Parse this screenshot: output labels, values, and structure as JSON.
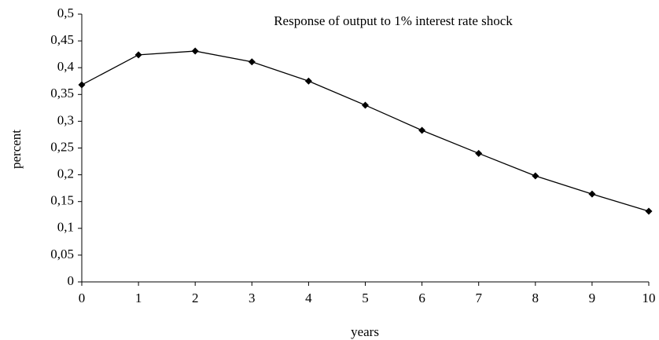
{
  "chart_data": {
    "type": "line",
    "title": "Response of output to 1% interest rate shock",
    "xlabel": "years",
    "ylabel": "percent",
    "x": [
      0,
      1,
      2,
      3,
      4,
      5,
      6,
      7,
      8,
      9,
      10
    ],
    "values": [
      0.368,
      0.424,
      0.431,
      0.411,
      0.375,
      0.33,
      0.283,
      0.24,
      0.198,
      0.164,
      0.132
    ],
    "color": "#000000",
    "xlim": [
      0,
      10
    ],
    "xticks": [
      0,
      1,
      2,
      3,
      4,
      5,
      6,
      7,
      8,
      9,
      10
    ],
    "ylim": [
      0,
      0.5
    ],
    "yticks": [
      0,
      {
        "value": 0.05,
        "label": "0,05"
      },
      {
        "value": 0.1,
        "label": "0,1"
      },
      {
        "value": 0.15,
        "label": "0,15"
      },
      {
        "value": 0.2,
        "label": "0,2"
      },
      {
        "value": 0.25,
        "label": "0,25"
      },
      {
        "value": 0.3,
        "label": "0,3"
      },
      {
        "value": 0.35,
        "label": "0,35"
      },
      {
        "value": 0.4,
        "label": "0,4"
      },
      {
        "value": 0.45,
        "label": "0,45"
      },
      {
        "value": 0.5,
        "label": "0,5"
      }
    ],
    "grid": false
  }
}
